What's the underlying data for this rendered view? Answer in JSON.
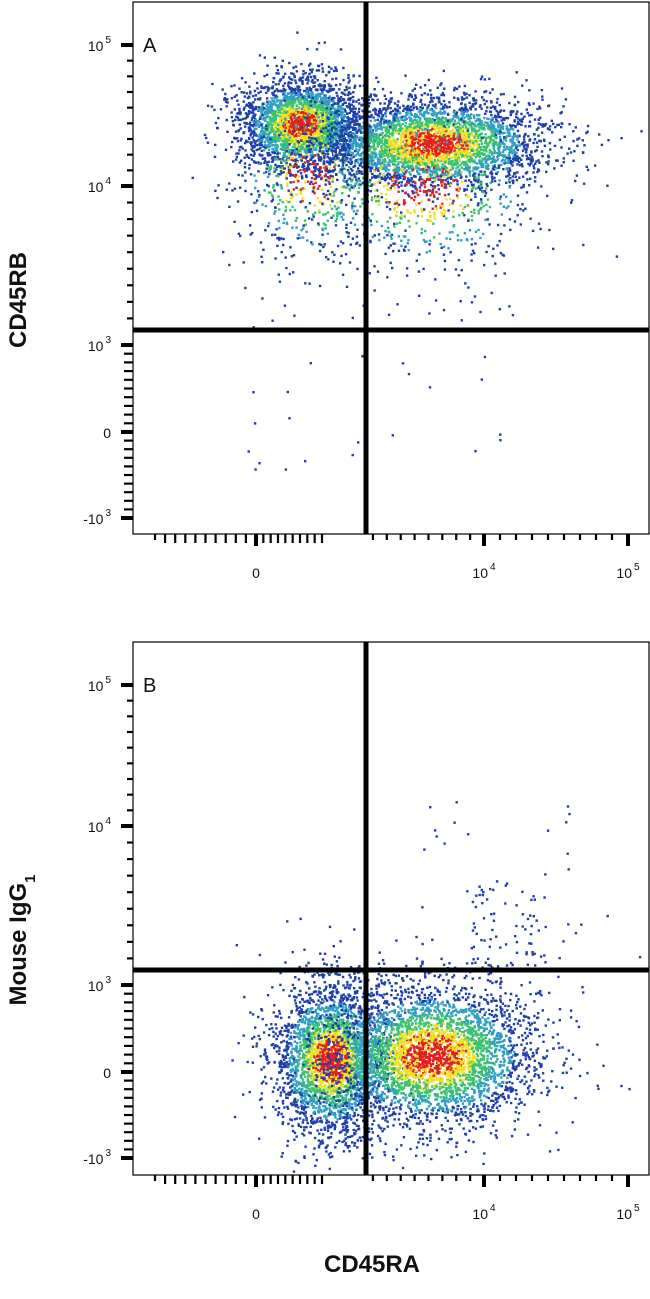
{
  "chart_data": [
    {
      "type": "scatter",
      "subtype": "flow-cytometry-density",
      "panel_label": "A",
      "xlabel": "CD45RA",
      "ylabel": "CD45RB",
      "x_scale": "biexponential",
      "y_scale": "biexponential",
      "x_ticks": [
        {
          "value": 0,
          "base": "0",
          "exp": ""
        },
        {
          "value": 10000,
          "base": "10",
          "exp": "4"
        },
        {
          "value": 100000,
          "base": "10",
          "exp": "5"
        }
      ],
      "y_ticks": [
        {
          "value": 100000,
          "base": "10",
          "exp": "5"
        },
        {
          "value": 10000,
          "base": "10",
          "exp": "4"
        },
        {
          "value": 1000,
          "base": "10",
          "exp": "3"
        },
        {
          "value": 0,
          "base": "0",
          "exp": ""
        },
        {
          "value": -1000,
          "base": "-10",
          "exp": "3"
        }
      ],
      "quadrant_gate": {
        "x": 1500,
        "y": 1300
      },
      "populations": [
        {
          "name": "CD45RA- CD45RB high",
          "x_center": 600,
          "y_center": 50000,
          "relative_size": 0.45
        },
        {
          "name": "CD45RA+ CD45RB high",
          "x_center": 7000,
          "y_center": 38000,
          "relative_size": 0.55
        }
      ],
      "grid": false,
      "legend": "none"
    },
    {
      "type": "scatter",
      "subtype": "flow-cytometry-density",
      "panel_label": "B",
      "xlabel": "CD45RA",
      "ylabel": "Mouse IgG",
      "ylabel_subscript": "1",
      "x_scale": "biexponential",
      "y_scale": "biexponential",
      "x_ticks": [
        {
          "value": 0,
          "base": "0",
          "exp": ""
        },
        {
          "value": 10000,
          "base": "10",
          "exp": "4"
        },
        {
          "value": 100000,
          "base": "10",
          "exp": "5"
        }
      ],
      "y_ticks": [
        {
          "value": 100000,
          "base": "10",
          "exp": "5"
        },
        {
          "value": 10000,
          "base": "10",
          "exp": "4"
        },
        {
          "value": 1000,
          "base": "10",
          "exp": "3"
        },
        {
          "value": 0,
          "base": "0",
          "exp": ""
        },
        {
          "value": -1000,
          "base": "-10",
          "exp": "3"
        }
      ],
      "quadrant_gate": {
        "x": 1500,
        "y": 1300
      },
      "populations": [
        {
          "name": "CD45RA- isotype",
          "x_center": 600,
          "y_center": 150,
          "relative_size": 0.45
        },
        {
          "name": "CD45RA+ isotype",
          "x_center": 7000,
          "y_center": 200,
          "relative_size": 0.55
        }
      ],
      "grid": false,
      "legend": "none"
    }
  ],
  "colors": {
    "density_low": "#1f3fa8",
    "density_mid_low": "#2f9fc2",
    "density_mid": "#3cc36f",
    "density_high": "#f0e020",
    "density_max": "#e02020",
    "axes": "#000000"
  }
}
